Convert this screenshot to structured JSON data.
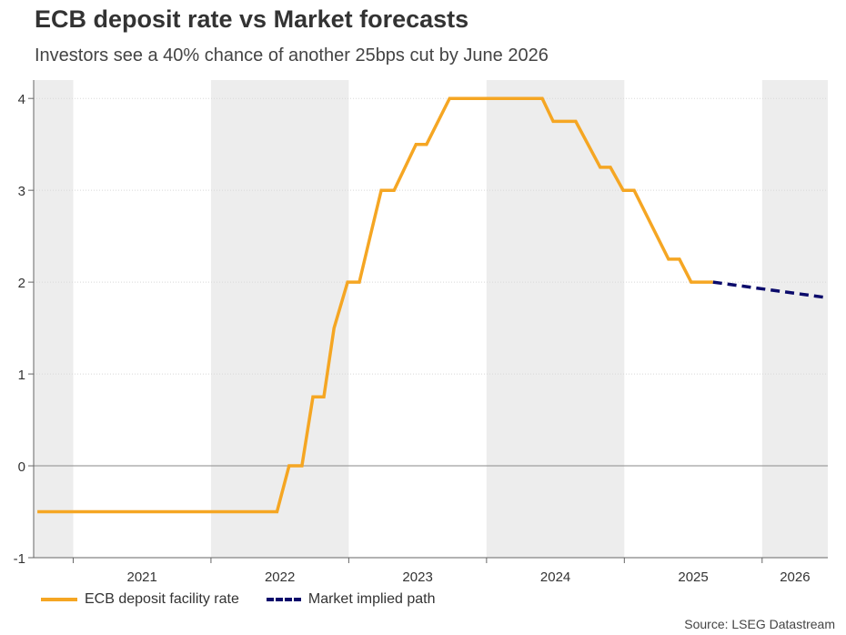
{
  "chart_data": {
    "type": "line",
    "title": "ECB deposit rate vs Market forecasts",
    "subtitle": "Investors see a 40% chance of another 25bps cut by June 2026",
    "xlabel": "",
    "ylabel": "",
    "xlim": [
      "2020-09-18",
      "2026-06-24"
    ],
    "ylim": [
      -1,
      4.2
    ],
    "x_tick_labels": [
      "2021",
      "2022",
      "2023",
      "2024",
      "2025",
      "2026"
    ],
    "y_ticks": [
      -1,
      0,
      1,
      2,
      3,
      4
    ],
    "grid": true,
    "alternate_year_shading": true,
    "legend_position": "bottom-left",
    "series": [
      {
        "name": "ECB deposit facility rate",
        "color": "#F5A623",
        "style": "solid",
        "points": [
          [
            "2020-09-28",
            -0.5
          ],
          [
            "2022-06-25",
            -0.5
          ],
          [
            "2022-07-27",
            0
          ],
          [
            "2022-08-30",
            0
          ],
          [
            "2022-09-28",
            0.75
          ],
          [
            "2022-10-27",
            0.75
          ],
          [
            "2022-11-23",
            1.5
          ],
          [
            "2022-12-29",
            2
          ],
          [
            "2023-01-29",
            2
          ],
          [
            "2023-02-27",
            2.5
          ],
          [
            "2023-03-28",
            3
          ],
          [
            "2023-05-01",
            3
          ],
          [
            "2023-06-28",
            3.5
          ],
          [
            "2023-07-26",
            3.5
          ],
          [
            "2023-09-25",
            4
          ],
          [
            "2024-05-28",
            4
          ],
          [
            "2024-06-26",
            3.75
          ],
          [
            "2024-08-25",
            3.75
          ],
          [
            "2024-10-29",
            3.25
          ],
          [
            "2024-11-25",
            3.25
          ],
          [
            "2024-12-29",
            3
          ],
          [
            "2025-01-27",
            3
          ],
          [
            "2025-04-28",
            2.25
          ],
          [
            "2025-05-27",
            2.25
          ],
          [
            "2025-06-27",
            2
          ],
          [
            "2025-08-24",
            2
          ]
        ]
      },
      {
        "name": "Market implied path",
        "color": "#0B0B6B",
        "style": "dashed",
        "points": [
          [
            "2025-08-24",
            2
          ],
          [
            "2026-06-24",
            1.83
          ]
        ]
      }
    ]
  },
  "source": "Source: LSEG Datastream"
}
